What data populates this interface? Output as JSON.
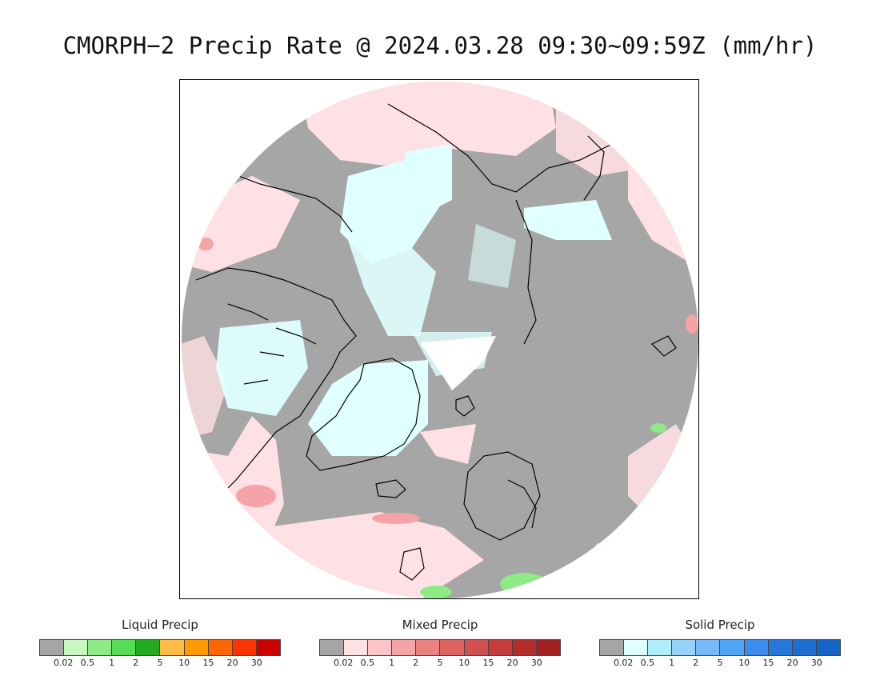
{
  "title": "CMORPH−2 Precip Rate @ 2024.03.28 09:30~09:59Z (mm/hr)",
  "colors": {
    "nodata": "#ffffff",
    "trace": "#a6a6a6",
    "coast": "#000000"
  },
  "legends": [
    {
      "id": "liquid",
      "title": "Liquid Precip",
      "colors": [
        "#a6a6a6",
        "#c8f8c0",
        "#8eea85",
        "#55de55",
        "#22aa22",
        "#ffbb44",
        "#ff9a00",
        "#ff6600",
        "#ff3300",
        "#cc0000"
      ],
      "ticks": [
        "0.02",
        "0.5",
        "1",
        "2",
        "5",
        "10",
        "15",
        "20",
        "30"
      ]
    },
    {
      "id": "mixed",
      "title": "Mixed Precip",
      "colors": [
        "#a6a6a6",
        "#ffe0e4",
        "#ffc4c8",
        "#f5a3a6",
        "#ea8282",
        "#de6464",
        "#d24f50",
        "#c63c3c",
        "#b42c2c",
        "#a21f22"
      ],
      "ticks": [
        "0.02",
        "0.5",
        "1",
        "2",
        "5",
        "10",
        "15",
        "20",
        "30"
      ]
    },
    {
      "id": "solid",
      "title": "Solid Precip",
      "colors": [
        "#a6a6a6",
        "#e0ffff",
        "#b0eefa",
        "#96d2fa",
        "#78b9fa",
        "#50a5f5",
        "#3c8cf0",
        "#2878dc",
        "#1e6ed2",
        "#1464c8"
      ],
      "ticks": [
        "0.02",
        "0.5",
        "1",
        "2",
        "5",
        "10",
        "15",
        "20",
        "30"
      ]
    }
  ]
}
